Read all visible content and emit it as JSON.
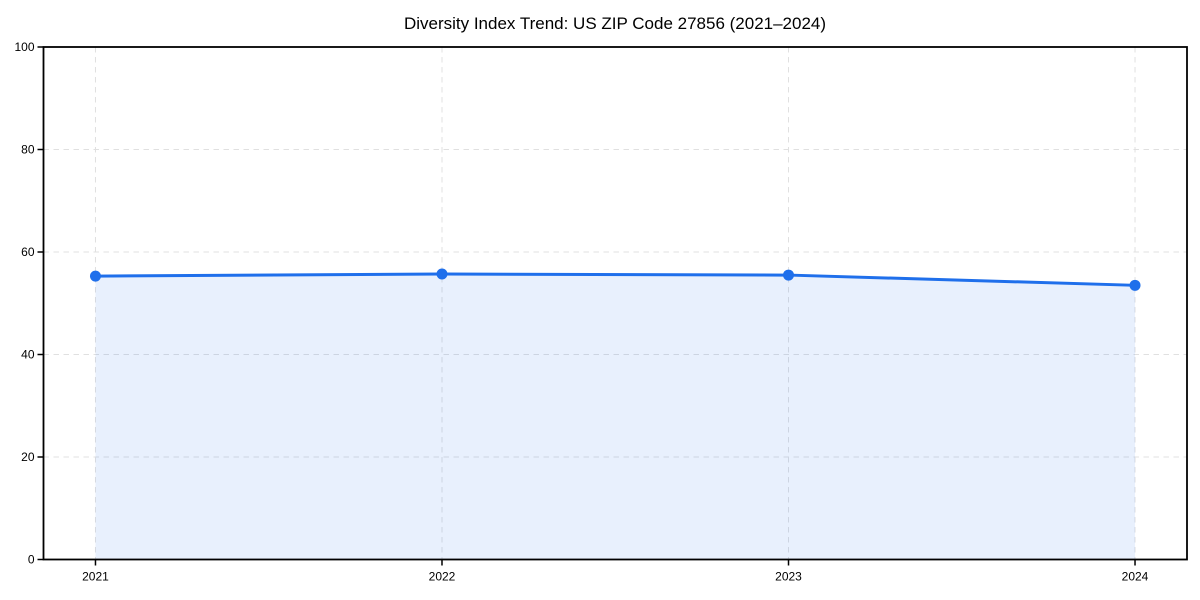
{
  "chart_data": {
    "type": "area",
    "title": "Diversity Index Trend: US ZIP Code 27856 (2021–2024)",
    "xlabel": "",
    "ylabel": "",
    "x": [
      2021,
      2022,
      2023,
      2024
    ],
    "xticks": [
      "2021",
      "2022",
      "2023",
      "2024"
    ],
    "yticks": [
      0,
      20,
      40,
      60,
      80,
      100
    ],
    "ylim": [
      0,
      100
    ],
    "xlim": [
      2020.85,
      2024.15
    ],
    "grid": true,
    "grid_style": "dashed",
    "legend_position": "none",
    "series": [
      {
        "name": "Diversity Index",
        "values": [
          55.3,
          55.7,
          55.5,
          53.5
        ]
      }
    ],
    "colors": {
      "line": "#1f6feb",
      "marker": "#1f6feb",
      "fill": "#1f6feb",
      "fill_opacity": 0.1,
      "grid": "#e0e0e0",
      "spine": "#000000",
      "tick_text": "#000000",
      "title_text": "#000000",
      "background": "#ffffff"
    }
  }
}
